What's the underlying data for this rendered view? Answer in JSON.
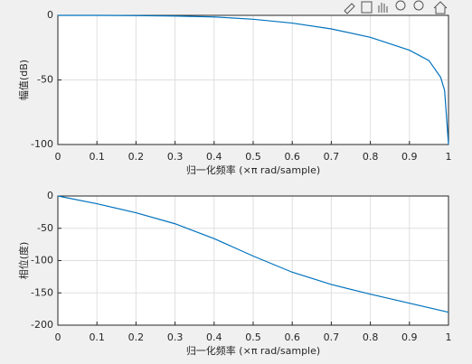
{
  "chart_data": [
    {
      "type": "line",
      "ylabel": "幅值(dB)",
      "xlabel": "归一化频率  (×π rad/sample)",
      "x": [
        0,
        0.1,
        0.2,
        0.3,
        0.4,
        0.5,
        0.6,
        0.7,
        0.8,
        0.9,
        0.95,
        0.98,
        0.99,
        1
      ],
      "series": [
        {
          "color": "#0072bd",
          "values": [
            0,
            0,
            -0.2,
            -0.5,
            -1.2,
            -3,
            -6,
            -10.5,
            -17,
            -27,
            -35,
            -48,
            -58,
            -100
          ]
        }
      ],
      "xlim": [
        0,
        1
      ],
      "xticks": [
        0,
        0.1,
        0.2,
        0.3,
        0.4,
        0.5,
        0.6,
        0.7,
        0.8,
        0.9,
        1
      ],
      "ylim": [
        -100,
        0
      ],
      "yticks": [
        -100,
        -50,
        0
      ],
      "grid": true
    },
    {
      "type": "line",
      "ylabel": "相位(度)",
      "xlabel": "归一化频率  (×π rad/sample)",
      "x": [
        0,
        0.1,
        0.2,
        0.3,
        0.4,
        0.5,
        0.6,
        0.7,
        0.8,
        0.9,
        1
      ],
      "series": [
        {
          "color": "#0072bd",
          "values": [
            0,
            -12,
            -26,
            -43,
            -66,
            -93,
            -118,
            -137,
            -152,
            -166,
            -180
          ]
        }
      ],
      "xlim": [
        0,
        1
      ],
      "xticks": [
        0,
        0.1,
        0.2,
        0.3,
        0.4,
        0.5,
        0.6,
        0.7,
        0.8,
        0.9,
        1
      ],
      "ylim": [
        -200,
        0
      ],
      "yticks": [
        -200,
        -150,
        -100,
        -50,
        0
      ],
      "grid": true
    }
  ]
}
